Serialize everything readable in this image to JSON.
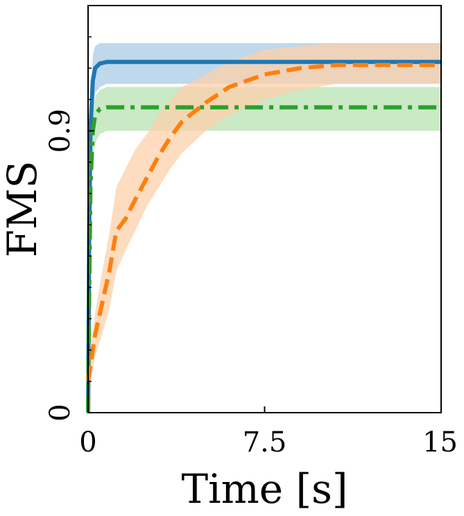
{
  "chart_data": {
    "type": "line",
    "title": "",
    "xlabel": "Time [s]",
    "ylabel": "FMS",
    "xlim": [
      0,
      15
    ],
    "ylim": [
      0,
      1.3
    ],
    "xticks": [
      0,
      7.5,
      15
    ],
    "xtick_labels": [
      "0",
      "7.5",
      "15"
    ],
    "yticks": [
      0,
      0.9
    ],
    "ytick_labels": [
      "0",
      "0.9"
    ],
    "grid": false,
    "legend": null,
    "series": [
      {
        "color": "#1f77b4",
        "band_color": "#a9cbe5",
        "linestyle": "solid",
        "x": [
          0,
          0.05,
          0.1,
          0.2,
          0.3,
          0.5,
          0.8,
          1.5,
          3,
          7.5,
          15
        ],
        "y": [
          0.0,
          0.6,
          0.9,
          1.06,
          1.1,
          1.115,
          1.12,
          1.12,
          1.12,
          1.12,
          1.12
        ],
        "y_low": [
          0.0,
          0.5,
          0.85,
          0.98,
          1.02,
          1.04,
          1.05,
          1.05,
          1.05,
          1.05,
          1.05
        ],
        "y_high": [
          0.0,
          0.7,
          1.0,
          1.14,
          1.17,
          1.18,
          1.18,
          1.18,
          1.18,
          1.18,
          1.18
        ]
      },
      {
        "color": "#2ca02c",
        "band_color": "#b8e2b1",
        "linestyle": "dashdot",
        "x": [
          0,
          0.05,
          0.1,
          0.2,
          0.3,
          0.5,
          0.8,
          1.5,
          3,
          7.5,
          15
        ],
        "y": [
          0.0,
          0.4,
          0.72,
          0.9,
          0.95,
          0.97,
          0.975,
          0.975,
          0.975,
          0.975,
          0.975
        ],
        "y_low": [
          0.0,
          0.32,
          0.62,
          0.8,
          0.86,
          0.89,
          0.9,
          0.9,
          0.9,
          0.9,
          0.9
        ],
        "y_high": [
          0.0,
          0.48,
          0.82,
          0.98,
          1.01,
          1.03,
          1.04,
          1.04,
          1.04,
          1.04,
          1.04
        ]
      },
      {
        "color": "#ff7f0e",
        "band_color": "#fdd0a9",
        "linestyle": "dashed",
        "x": [
          0,
          0.1,
          0.3,
          0.6,
          0.9,
          1.2,
          1.6,
          2.0,
          2.5,
          3.0,
          3.5,
          4.0,
          5.0,
          6.0,
          7.5,
          9.0,
          10.5,
          12.0,
          13.5,
          15.0
        ],
        "y": [
          0.1,
          0.15,
          0.25,
          0.35,
          0.45,
          0.58,
          0.62,
          0.68,
          0.75,
          0.82,
          0.88,
          0.93,
          0.99,
          1.04,
          1.08,
          1.1,
          1.11,
          1.11,
          1.11,
          1.11
        ],
        "y_low": [
          0.05,
          0.1,
          0.18,
          0.25,
          0.33,
          0.45,
          0.52,
          0.58,
          0.66,
          0.72,
          0.78,
          0.83,
          0.9,
          0.95,
          1.0,
          1.03,
          1.05,
          1.05,
          1.05,
          1.05
        ],
        "y_high": [
          0.15,
          0.2,
          0.32,
          0.45,
          0.57,
          0.72,
          0.78,
          0.84,
          0.89,
          0.95,
          1.0,
          1.04,
          1.08,
          1.12,
          1.16,
          1.17,
          1.18,
          1.18,
          1.18,
          1.18
        ]
      }
    ]
  }
}
